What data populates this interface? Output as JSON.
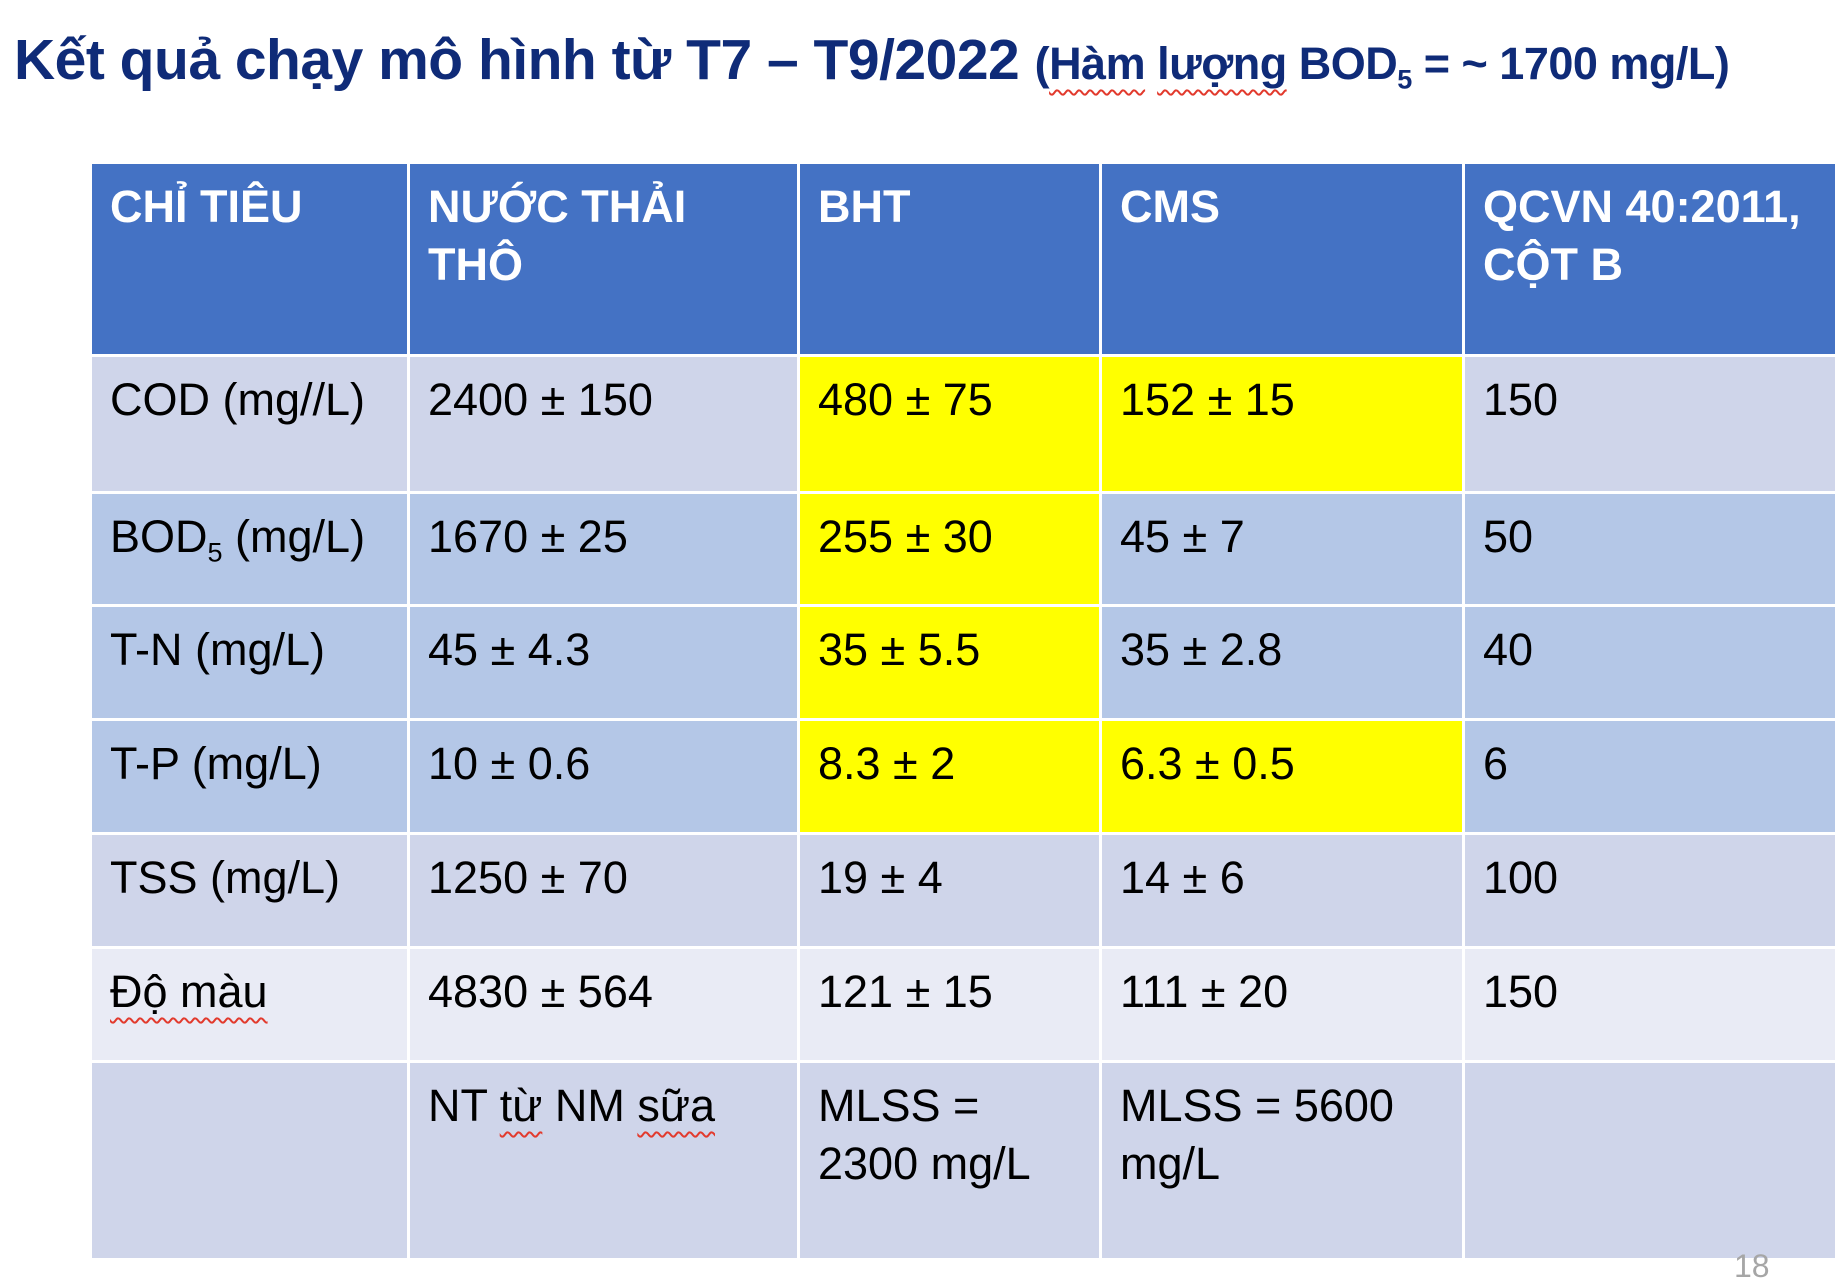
{
  "slide": {
    "title_main": "Kết quả chạy mô hình từ T7 – T9/2022",
    "title_paren_open": "(",
    "title_sub_word1": "Hàm",
    "title_sub_word2": "lượng",
    "title_sub_bod": "BOD",
    "title_sub_bod_subscript": "5",
    "title_sub_rest": " = ~ 1700 mg/L)",
    "page_number": "18"
  },
  "table": {
    "headers": [
      "CHỈ TIÊU",
      "NƯỚC THẢI THÔ",
      "BHT",
      "CMS",
      "QCVN 40:2011, CỘT B"
    ],
    "rows": [
      {
        "param": "COD (mg//L)",
        "raw": "2400 ± 150",
        "bht": "480 ± 75",
        "cms": "152 ± 15",
        "qcvn": "150"
      },
      {
        "param_main": "BOD",
        "param_sub": "5",
        "param_unit": " (mg/L)",
        "raw": "1670 ± 25",
        "bht": "255 ± 30",
        "cms": "45 ± 7",
        "qcvn": "50"
      },
      {
        "param": "T-N (mg/L)",
        "raw": "45 ± 4.3",
        "bht": "35 ± 5.5",
        "cms": "35 ± 2.8",
        "qcvn": "40"
      },
      {
        "param": "T-P (mg/L)",
        "raw": "10 ± 0.6",
        "bht": "8.3 ± 2",
        "cms": "6.3 ± 0.5",
        "qcvn": "6"
      },
      {
        "param": "TSS (mg/L)",
        "raw": "1250 ± 70",
        "bht": "19 ± 4",
        "cms": "14 ± 6",
        "qcvn": "100"
      },
      {
        "param": "Độ màu",
        "raw": "4830 ± 564",
        "bht": "121 ± 15",
        "cms": "111 ± 20",
        "qcvn": "150"
      },
      {
        "param": "",
        "raw_prefix": "NT",
        "raw_word1": "từ",
        "raw_mid": " NM ",
        "raw_word2": "sữa",
        "bht": "MLSS = 2300 mg/L",
        "cms": "MLSS = 5600 mg/L",
        "qcvn": ""
      }
    ]
  },
  "colors": {
    "title": "#0f2b78",
    "header_bg": "#4472c4",
    "row_dark": "#b4c7e7",
    "row_light": "#cfd5ea",
    "row_pale": "#e9ebf5",
    "highlight": "#ffff00",
    "spellcheck_underline": "#e23a2d"
  }
}
